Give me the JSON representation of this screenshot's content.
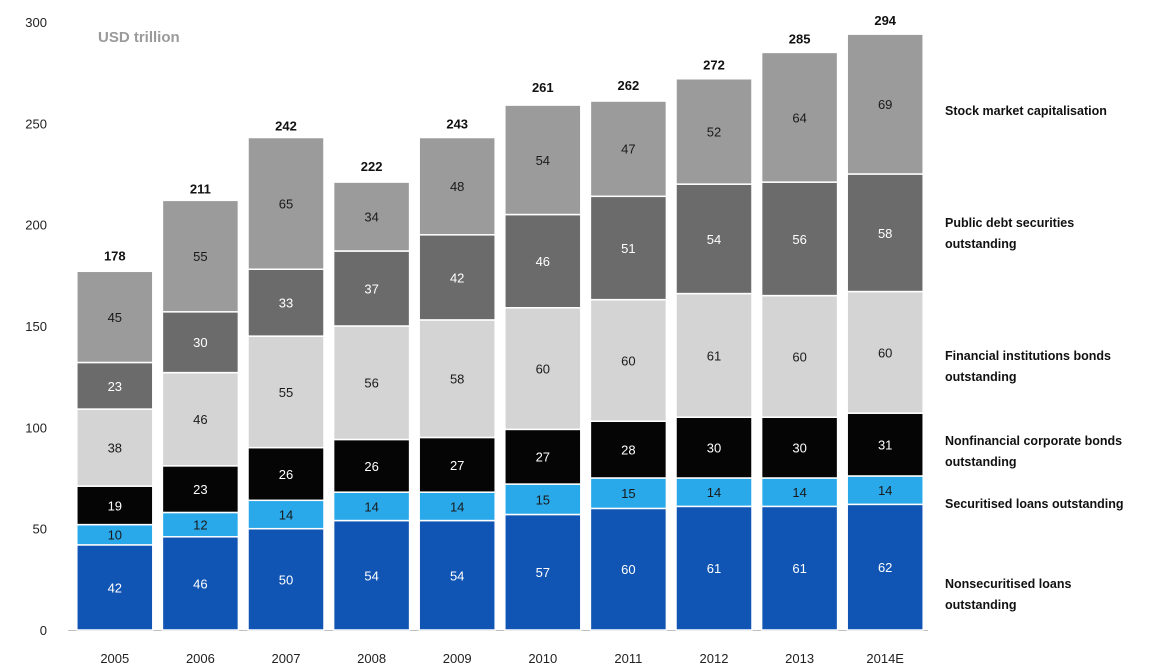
{
  "chart_data": {
    "type": "bar",
    "stacked": true,
    "unit_label": "USD trillion",
    "categories": [
      "2005",
      "2006",
      "2007",
      "2008",
      "2009",
      "2010",
      "2011",
      "2012",
      "2013",
      "2014E"
    ],
    "ylim": [
      0,
      300
    ],
    "yticks": [
      0,
      50,
      100,
      150,
      200,
      250,
      300
    ],
    "totals": [
      178,
      211,
      242,
      222,
      243,
      261,
      262,
      272,
      285,
      294
    ],
    "series": [
      {
        "name": "Nonsecuritised loans outstanding",
        "color": "#1155b4",
        "text_color": "#ffffff",
        "values": [
          42,
          46,
          50,
          54,
          54,
          57,
          60,
          61,
          61,
          62
        ]
      },
      {
        "name": "Securitised loans outstanding",
        "color": "#29a8ea",
        "text_color": "#1a1a1a",
        "values": [
          10,
          12,
          14,
          14,
          14,
          15,
          15,
          14,
          14,
          14
        ]
      },
      {
        "name": "Nonfinancial corporate bonds outstanding",
        "color": "#050505",
        "text_color": "#ffffff",
        "values": [
          19,
          23,
          26,
          26,
          27,
          27,
          28,
          30,
          30,
          31
        ]
      },
      {
        "name": "Financial institutions bonds outstanding",
        "color": "#d4d4d4",
        "text_color": "#1a1a1a",
        "values": [
          38,
          46,
          55,
          56,
          58,
          60,
          60,
          61,
          60,
          60
        ]
      },
      {
        "name": "Public debt securities outstanding",
        "color": "#6b6b6b",
        "text_color": "#ffffff",
        "values": [
          23,
          30,
          33,
          37,
          42,
          46,
          51,
          54,
          56,
          58
        ]
      },
      {
        "name": "Stock market capitalisation",
        "color": "#9b9b9b",
        "text_color": "#1a1a1a",
        "values": [
          45,
          55,
          65,
          34,
          48,
          54,
          47,
          52,
          64,
          69
        ]
      }
    ],
    "legend_placement": "right",
    "grid": false
  }
}
